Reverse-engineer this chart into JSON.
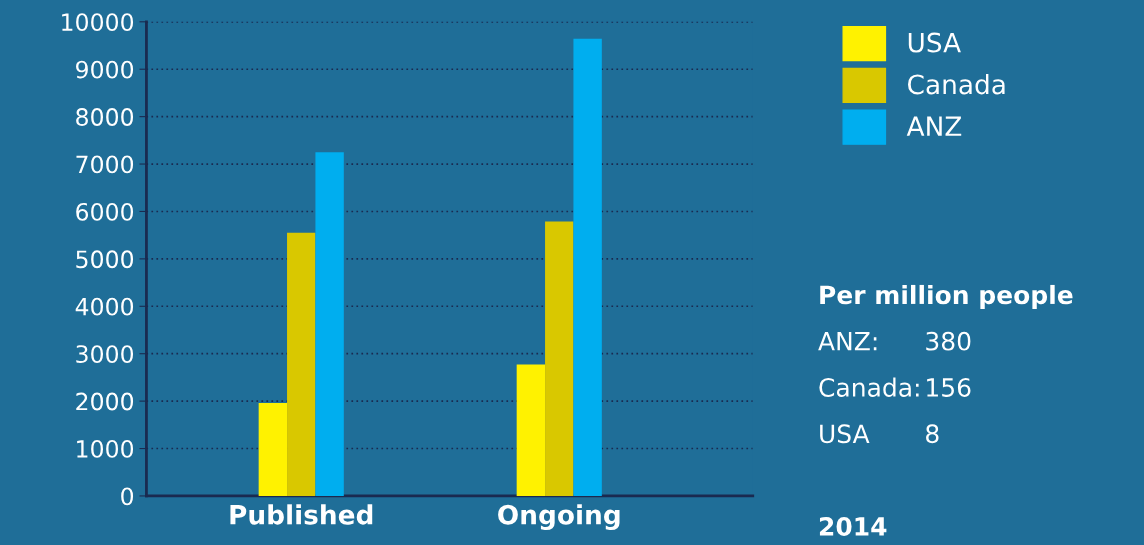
{
  "chart_data": {
    "type": "bar",
    "categories": [
      "Published",
      "Ongoing"
    ],
    "series": [
      {
        "name": "USA",
        "color": "#fff200",
        "values": [
          1960,
          2770
        ]
      },
      {
        "name": "Canada",
        "color": "#d9c800",
        "values": [
          5550,
          5790
        ]
      },
      {
        "name": "ANZ",
        "color": "#00aeef",
        "values": [
          7250,
          9640
        ]
      }
    ],
    "ylim": [
      0,
      10000
    ],
    "yticks": [
      0,
      1000,
      2000,
      3000,
      4000,
      5000,
      6000,
      7000,
      8000,
      9000,
      10000
    ],
    "grid": "y",
    "legend": "top right",
    "annotations": [
      "Per million people",
      "ANZ:",
      "380",
      "Canada:",
      "156",
      "USA",
      "8",
      "2014"
    ]
  }
}
